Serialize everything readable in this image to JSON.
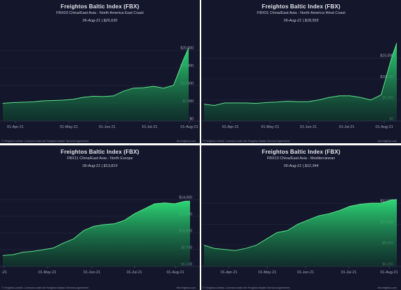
{
  "footer_text": "© Freightos Limited. Licensed under the Freightos Master Services Agreement.",
  "website": "fbx.freightos.com",
  "colors": {
    "panel_bg": "#14162b",
    "line": "#5fe38a",
    "fill_top": "#2ee07a",
    "fill_bottom": "#0d3d2a",
    "text": "#dfe2ea"
  },
  "chart_data": [
    {
      "type": "area",
      "title": "Freightos Baltic Index (FBX)",
      "subtitle": "FBX03 China/East Asia - North America East Coast",
      "date_value": "06-Aug-21 | $20,636",
      "x_tick_labels": [
        "01-Apr-21",
        "01-May-21",
        "01-Jun-21",
        "01-Jul-21",
        "01-Aug-21"
      ],
      "y_tick_labels": [
        "$0",
        "$5,000",
        "$10,000",
        "$15,000",
        "$20,000"
      ],
      "ylim": [
        0,
        22000
      ],
      "x": [
        0,
        2,
        4,
        6,
        8,
        10,
        12,
        14,
        16,
        18,
        20,
        22,
        24,
        26,
        28,
        30,
        32,
        34,
        36,
        37
      ],
      "values": [
        5000,
        5200,
        5300,
        5400,
        5700,
        5800,
        5900,
        6100,
        6700,
        7000,
        6900,
        7100,
        8400,
        9300,
        9400,
        9800,
        9300,
        10100,
        17500,
        20636
      ]
    },
    {
      "type": "area",
      "title": "Freightos Baltic Index (FBX)",
      "subtitle": "FBX01 China/East Asia - North America West Coast",
      "date_value": "06-Aug-21 | $18,555",
      "x_tick_labels": [
        "01-Apr-21",
        "01-May-21",
        "01-Jun-21",
        "01-Jul-21",
        "01-Aug-21"
      ],
      "y_tick_labels": [
        "$0",
        "$5,000",
        "$10,000",
        "$15,000"
      ],
      "ylim": [
        0,
        19500
      ],
      "x": [
        0,
        2,
        4,
        6,
        8,
        10,
        12,
        14,
        16,
        18,
        20,
        22,
        24,
        26,
        28,
        30,
        32,
        34,
        36,
        37
      ],
      "values": [
        4000,
        3700,
        4300,
        4300,
        4300,
        4200,
        4400,
        4500,
        4700,
        4600,
        4600,
        5000,
        5600,
        6000,
        6000,
        5600,
        5000,
        6200,
        15000,
        18555
      ]
    },
    {
      "type": "area",
      "title": "Freightos Baltic Index (FBX)",
      "subtitle": "FBX11 China/East Asia - North Europe",
      "date_value": "06-Aug-21 | $13,819",
      "x_tick_labels": [
        "-21",
        "01-May-21",
        "01-Jun-21",
        "01-Jul-21",
        "01-Aug-21"
      ],
      "y_tick_labels": [
        "$6,000",
        "$8,000",
        "$10,000",
        "$12,000",
        "$14,000"
      ],
      "ylim": [
        6000,
        14500
      ],
      "x": [
        0,
        2,
        4,
        6,
        8,
        10,
        12,
        14,
        16,
        18,
        20,
        22,
        24,
        26,
        28,
        30,
        32,
        34,
        36,
        37
      ],
      "values": [
        7300,
        7400,
        7700,
        7800,
        8000,
        8200,
        8800,
        9300,
        10300,
        10800,
        11000,
        11100,
        11500,
        12300,
        12900,
        13500,
        13600,
        13500,
        13800,
        13819
      ]
    },
    {
      "type": "area",
      "title": "Freightos Baltic Index (FBX)",
      "subtitle": "FBX13 China/East Asia - Mediterranean",
      "date_value": "06-Aug-21 | $12,344",
      "x_tick_labels": [
        "01-Apr-21",
        "01-May-21",
        "01-Jun-21",
        "01-Jul-21",
        "01-Aug-21"
      ],
      "y_tick_labels": [
        "$6,000",
        "$8,000",
        "$10,000",
        "$12,000"
      ],
      "ylim": [
        6000,
        12600
      ],
      "x": [
        0,
        2,
        4,
        6,
        8,
        10,
        12,
        14,
        16,
        18,
        20,
        22,
        24,
        26,
        28,
        30,
        32,
        34,
        36,
        37
      ],
      "values": [
        8000,
        7700,
        7600,
        7500,
        7700,
        8000,
        8600,
        9200,
        9400,
        10000,
        10400,
        10800,
        11000,
        11300,
        11700,
        11900,
        12000,
        12000,
        12300,
        12344
      ]
    }
  ]
}
